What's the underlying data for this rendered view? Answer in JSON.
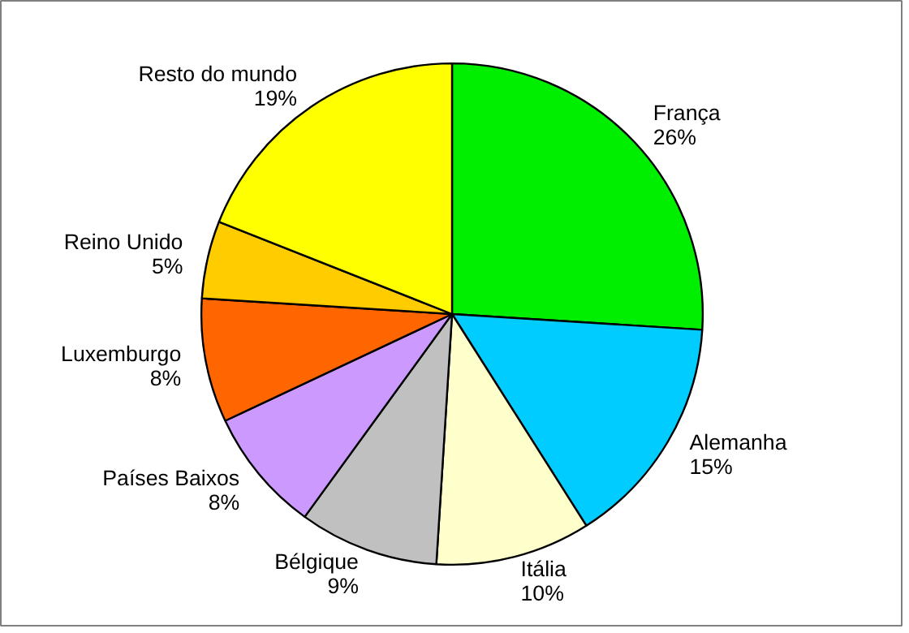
{
  "chart_data": {
    "type": "pie",
    "categories": [
      "França",
      "Alemanha",
      "Itália",
      "Bélgique",
      "Países Baixos",
      "Luxemburgo",
      "Reino Unido",
      "Resto do mundo"
    ],
    "values": [
      26,
      15,
      10,
      9,
      8,
      8,
      5,
      19
    ],
    "colors": [
      "#00ee00",
      "#00ccff",
      "#ffffcc",
      "#c0c0c0",
      "#cc99ff",
      "#ff6600",
      "#ffcc00",
      "#ffff00"
    ],
    "value_labels": [
      "26%",
      "15%",
      "10%",
      "9%",
      "8%",
      "8%",
      "5%",
      "19%"
    ]
  }
}
